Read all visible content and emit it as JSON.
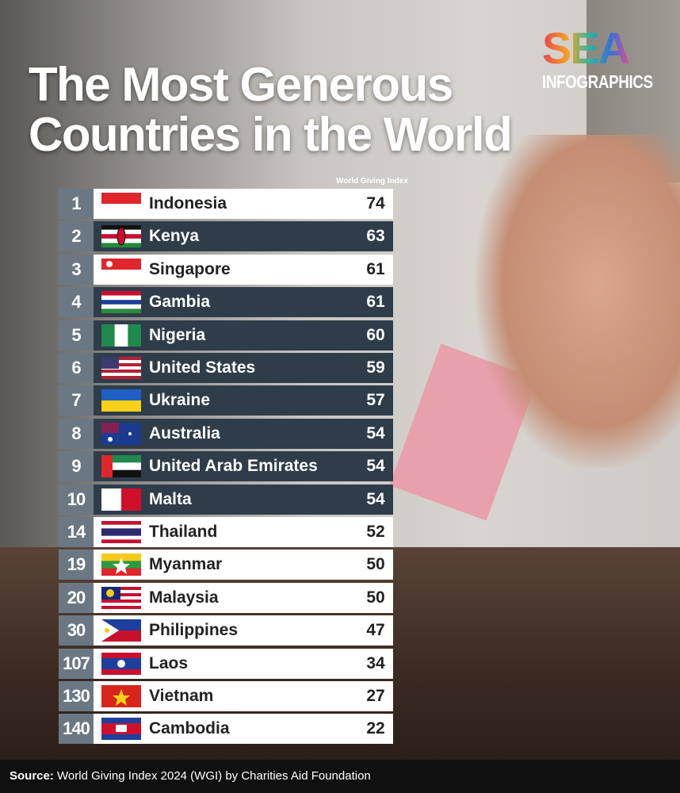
{
  "logo": {
    "top": "SEA",
    "bottom": "INFOGRAPHICS"
  },
  "title": [
    "The Most Generous",
    "Countries in the World"
  ],
  "table": {
    "column_header": "World Giving Index",
    "rows": [
      {
        "rank": 1,
        "country": "Indonesia",
        "score": 74
      },
      {
        "rank": 2,
        "country": "Kenya",
        "score": 63
      },
      {
        "rank": 3,
        "country": "Singapore",
        "score": 61
      },
      {
        "rank": 4,
        "country": "Gambia",
        "score": 61
      },
      {
        "rank": 5,
        "country": "Nigeria",
        "score": 60
      },
      {
        "rank": 6,
        "country": "United States",
        "score": 59
      },
      {
        "rank": 7,
        "country": "Ukraine",
        "score": 57
      },
      {
        "rank": 8,
        "country": "Australia",
        "score": 54
      },
      {
        "rank": 9,
        "country": "United Arab Emirates",
        "score": 54
      },
      {
        "rank": 10,
        "country": "Malta",
        "score": 54
      },
      {
        "rank": 14,
        "country": "Thailand",
        "score": 52
      },
      {
        "rank": 19,
        "country": "Myanmar",
        "score": 50
      },
      {
        "rank": 20,
        "country": "Malaysia",
        "score": 50
      },
      {
        "rank": 30,
        "country": "Philippines",
        "score": 47
      },
      {
        "rank": 107,
        "country": "Laos",
        "score": 34
      },
      {
        "rank": 130,
        "country": "Vietnam",
        "score": 27
      },
      {
        "rank": 140,
        "country": "Cambodia",
        "score": 22
      }
    ]
  },
  "source": {
    "label": "Source:",
    "text": "World Giving Index 2024 (WGI) by Charities Aid Foundation"
  }
}
